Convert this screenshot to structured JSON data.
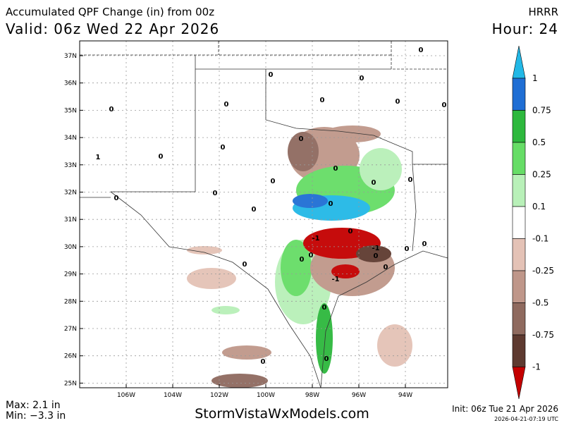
{
  "header": {
    "title": "Accumulated QPF Change (in) from 00z",
    "valid": "Valid: 06z Wed 22 Apr 2026",
    "model": "HRRR",
    "hour": "Hour: 24"
  },
  "map": {
    "lat_labels": [
      "37N",
      "36N",
      "35N",
      "34N",
      "33N",
      "32N",
      "31N",
      "30N",
      "29N",
      "28N",
      "27N",
      "26N",
      "25N"
    ],
    "lon_labels": [
      "106W",
      "104W",
      "102W",
      "100W",
      "98W",
      "96W",
      "94W"
    ],
    "contour_labels": [
      "0",
      "0",
      "0",
      "0",
      "0",
      "0",
      "0",
      "0",
      "0",
      "0",
      "0",
      "0",
      "0",
      "0",
      "0",
      "0",
      "0",
      "0",
      "0",
      "0",
      "-1",
      "-1",
      "0",
      "0",
      "0",
      "0",
      "0",
      "0",
      "0",
      "-1",
      "0",
      "0",
      "0",
      "1"
    ]
  },
  "legend": {
    "labels": [
      "1",
      "0.75",
      "0.5",
      "0.25",
      "0.1",
      "-0.1",
      "-0.25",
      "-0.5",
      "-0.75",
      "-1"
    ],
    "colors": [
      "#22b8e6",
      "#1f6ed4",
      "#2db83d",
      "#66dd66",
      "#b8f0b8",
      "#ffffff",
      "#e4c2b6",
      "#bf978a",
      "#8f6a5f",
      "#5e3a30",
      "#c40000"
    ]
  },
  "footer": {
    "max": "Max: 2.1 in",
    "min": "Min: −3.3 in",
    "site": "StormVistaWxModels.com",
    "init": "Init: 06z Tue 21 Apr 2026",
    "stamp": "2026-04-21-07:19 UTC"
  }
}
